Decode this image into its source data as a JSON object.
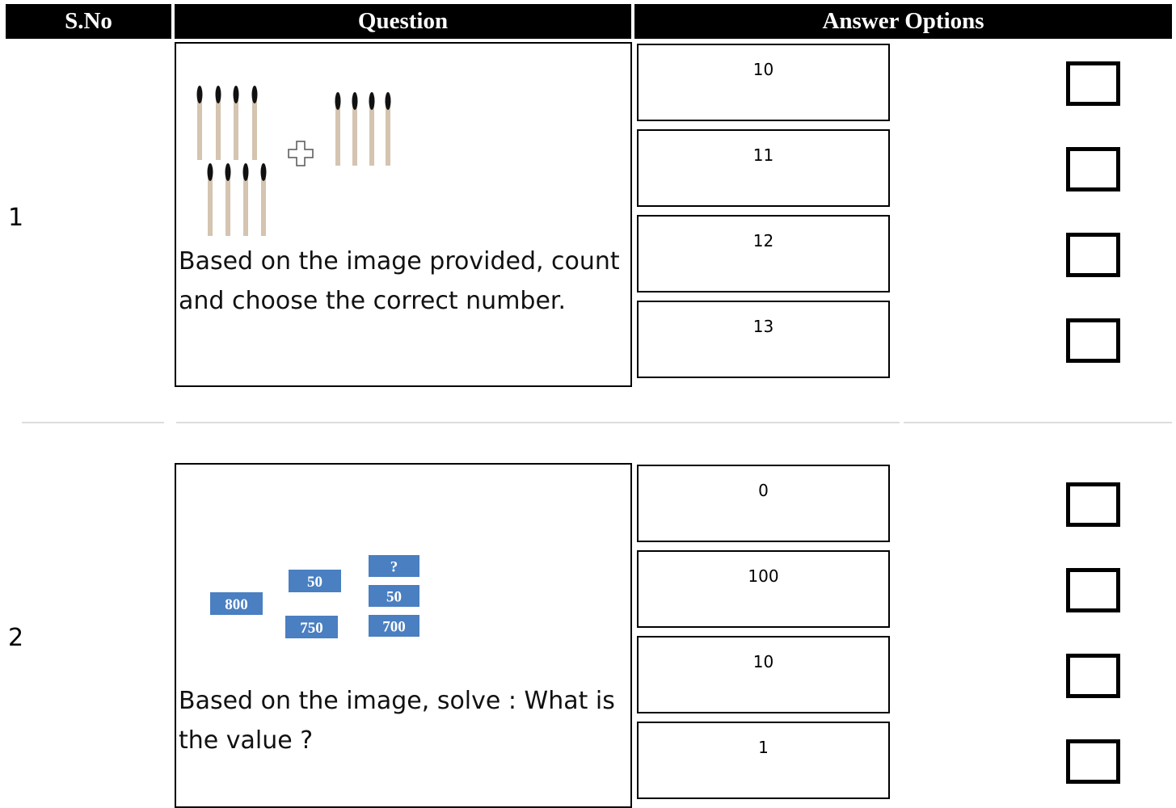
{
  "header": [
    "S.No",
    "Question",
    "Answer Options"
  ],
  "rows": [
    {
      "sno": "1",
      "question": "Based on the image provided, count and choose the correct number.",
      "options": [
        "10",
        "11",
        "12",
        "13"
      ]
    },
    {
      "sno": "2",
      "image_labels": [
        "800",
        "50",
        "750",
        "?",
        "50",
        "700"
      ],
      "question": "Based on the image, solve : What is the value ?",
      "options": [
        "0",
        "100",
        "10",
        "1"
      ]
    }
  ]
}
